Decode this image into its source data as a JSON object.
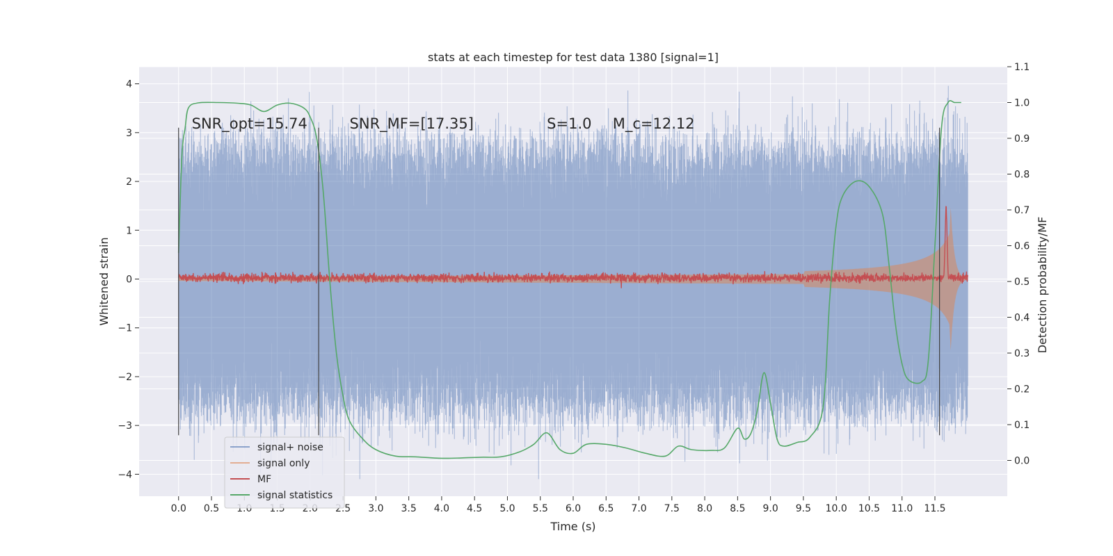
{
  "chart_data": {
    "type": "line",
    "title": "stats at each timestep for test data 1380 [signal=1]",
    "xlabel": "Time (s)",
    "ylabel": "Whitened strain",
    "y2label": "Detection probability/MF",
    "xlim": [
      -0.6,
      12.6
    ],
    "ylim": [
      -4.45,
      4.35
    ],
    "y2lim": [
      -0.1,
      1.1
    ],
    "x_ticks": [
      0.0,
      0.5,
      1.0,
      1.5,
      2.0,
      2.5,
      3.0,
      3.5,
      4.0,
      4.5,
      5.0,
      5.5,
      6.0,
      6.5,
      7.0,
      7.5,
      8.0,
      8.5,
      9.0,
      9.5,
      10.0,
      10.5,
      11.0,
      11.5
    ],
    "x_tick_labels": [
      "0.0",
      "0.5",
      "1.0",
      "1.5",
      "2.0",
      "2.5",
      "3.0",
      "3.5",
      "4.0",
      "4.5",
      "5.0",
      "5.5",
      "6.0",
      "6.5",
      "7.0",
      "7.5",
      "8.0",
      "8.5",
      "9.0",
      "9.5",
      "10.0",
      "10.5",
      "11.0",
      "11.5"
    ],
    "y_ticks": [
      -4,
      -3,
      -2,
      -1,
      0,
      1,
      2,
      3,
      4
    ],
    "y_tick_labels": [
      "−4",
      "−3",
      "−2",
      "−1",
      "0",
      "1",
      "2",
      "3",
      "4"
    ],
    "y2_ticks": [
      0.0,
      0.1,
      0.2,
      0.3,
      0.4,
      0.5,
      0.6,
      0.7,
      0.8,
      0.9,
      1.0,
      1.1
    ],
    "y2_tick_labels": [
      "0.0",
      "0.1",
      "0.2",
      "0.3",
      "0.4",
      "0.5",
      "0.6",
      "0.7",
      "0.8",
      "0.9",
      "1.0",
      "1.1"
    ],
    "grid": true,
    "legend_position": "lower-left",
    "annotations": [
      {
        "x": 0.2,
        "y": 3.08,
        "text": "SNR_opt=15.74"
      },
      {
        "x": 2.6,
        "y": 3.08,
        "text": "SNR_MF=[17.35]"
      },
      {
        "x": 5.6,
        "y": 3.08,
        "text": "S=1.0"
      },
      {
        "x": 6.6,
        "y": 3.08,
        "text": "M_c=12.12"
      }
    ],
    "vertical_markers": [
      {
        "x": 0.0,
        "y_range": [
          -3.2,
          3.1
        ]
      },
      {
        "x": 2.13,
        "y_range": [
          -3.2,
          3.1
        ]
      },
      {
        "x": 11.57,
        "y_range": [
          -3.2,
          3.1
        ]
      }
    ],
    "series": [
      {
        "name": "signal+ noise",
        "color": "#4c72b0",
        "axis": "left",
        "kind": "noise_band",
        "x_range": [
          0.0,
          12.0
        ],
        "envelope": {
          "low": -2.5,
          "high": 2.5,
          "peak_min": -4.1,
          "peak_max": 3.98
        }
      },
      {
        "name": "signal only",
        "color": "#dd8452",
        "axis": "left",
        "kind": "chirp",
        "x_range": [
          0.0,
          12.0
        ],
        "amplitude_start": 0.01,
        "amplitude_max": 2.1,
        "merger_time": 11.72
      },
      {
        "name": "MF",
        "color": "#c44e52",
        "axis": "right",
        "kind": "noisy_level",
        "x_range": [
          0.0,
          12.0
        ],
        "level": 0.51,
        "peak": {
          "x": 11.67,
          "y": 0.71
        }
      },
      {
        "name": "signal statistics",
        "color": "#55a868",
        "axis": "right",
        "kind": "line",
        "x": [
          0.0,
          0.05,
          0.1,
          0.15,
          0.3,
          0.6,
          0.9,
          1.1,
          1.3,
          1.5,
          1.7,
          1.9,
          2.0,
          2.1,
          2.2,
          2.3,
          2.4,
          2.5,
          2.6,
          2.8,
          3.0,
          3.3,
          3.6,
          4.0,
          4.3,
          4.6,
          4.9,
          5.2,
          5.4,
          5.6,
          5.8,
          6.0,
          6.2,
          6.5,
          6.8,
          7.1,
          7.4,
          7.6,
          7.8,
          8.1,
          8.3,
          8.5,
          8.6,
          8.7,
          8.8,
          8.9,
          9.0,
          9.1,
          9.2,
          9.4,
          9.6,
          9.8,
          9.9,
          10.0,
          10.1,
          10.3,
          10.5,
          10.7,
          10.8,
          10.9,
          11.0,
          11.1,
          11.3,
          11.4,
          11.5,
          11.6,
          11.7,
          11.8,
          11.9
        ],
        "values": [
          0.58,
          0.85,
          0.93,
          0.985,
          0.999,
          1.0,
          0.998,
          0.993,
          0.975,
          0.993,
          0.998,
          0.985,
          0.96,
          0.9,
          0.75,
          0.5,
          0.3,
          0.18,
          0.11,
          0.06,
          0.03,
          0.012,
          0.01,
          0.006,
          0.007,
          0.009,
          0.01,
          0.025,
          0.045,
          0.077,
          0.03,
          0.02,
          0.045,
          0.045,
          0.035,
          0.02,
          0.012,
          0.04,
          0.03,
          0.028,
          0.035,
          0.09,
          0.06,
          0.075,
          0.14,
          0.245,
          0.16,
          0.06,
          0.04,
          0.05,
          0.065,
          0.15,
          0.45,
          0.66,
          0.74,
          0.78,
          0.765,
          0.69,
          0.55,
          0.38,
          0.27,
          0.225,
          0.22,
          0.28,
          0.6,
          0.93,
          1.0,
          1.0,
          1.0
        ]
      }
    ]
  }
}
